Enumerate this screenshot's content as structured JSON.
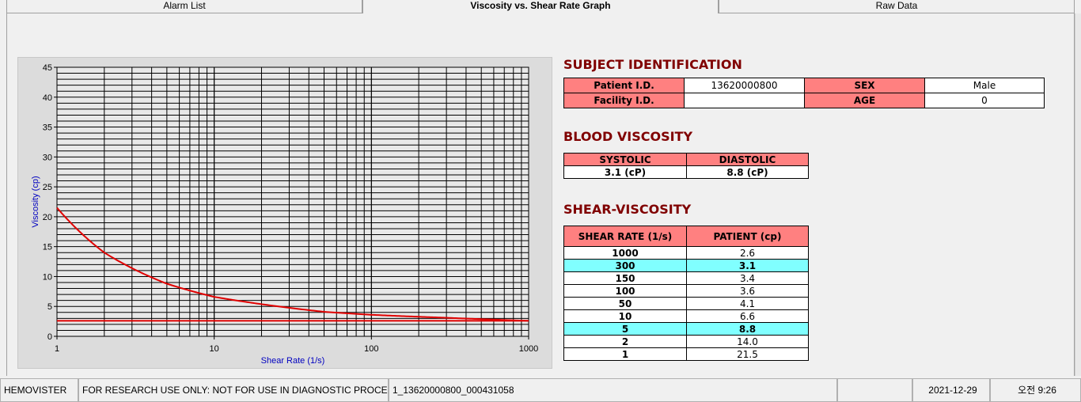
{
  "tabs": [
    {
      "label": "Alarm List"
    },
    {
      "label": "Viscosity vs. Shear Rate Graph"
    },
    {
      "label": "Raw Data"
    }
  ],
  "subject": {
    "title": "SUBJECT IDENTIFICATION",
    "patient_id_label": "Patient I.D.",
    "patient_id": "13620000800",
    "sex_label": "SEX",
    "sex": "Male",
    "facility_id_label": "Facility I.D.",
    "facility_id": "",
    "age_label": "AGE",
    "age": "0"
  },
  "blood": {
    "title": "BLOOD VISCOSITY",
    "systolic_label": "SYSTOLIC",
    "diastolic_label": "DIASTOLIC",
    "systolic": "3.1 (cP)",
    "diastolic": "8.8 (cP)"
  },
  "shear": {
    "title": "SHEAR-VISCOSITY",
    "col1": "SHEAR RATE (1/s)",
    "col2": "PATIENT (cp)",
    "rows": [
      {
        "rate": "1000",
        "val": "2.6",
        "hl": false
      },
      {
        "rate": "300",
        "val": "3.1",
        "hl": true
      },
      {
        "rate": "150",
        "val": "3.4",
        "hl": false
      },
      {
        "rate": "100",
        "val": "3.6",
        "hl": false
      },
      {
        "rate": "50",
        "val": "4.1",
        "hl": false
      },
      {
        "rate": "10",
        "val": "6.6",
        "hl": false
      },
      {
        "rate": "5",
        "val": "8.8",
        "hl": true
      },
      {
        "rate": "2",
        "val": "14.0",
        "hl": false
      },
      {
        "rate": "1",
        "val": "21.5",
        "hl": false
      }
    ]
  },
  "chart_data": {
    "type": "line",
    "xlabel": "Shear Rate (1/s)",
    "ylabel": "Viscosity (cp)",
    "xscale": "log",
    "xlim": [
      1,
      1000
    ],
    "ylim": [
      0,
      45
    ],
    "grid": true,
    "xticks": [
      "1",
      "10",
      "100",
      "1000"
    ],
    "yticks": [
      "0",
      "5",
      "10",
      "15",
      "20",
      "25",
      "30",
      "35",
      "40",
      "45"
    ],
    "series": [
      {
        "x": [
          1,
          2,
          5,
          10,
          50,
          100,
          150,
          300,
          1000
        ],
        "y": [
          21.5,
          14.0,
          8.8,
          6.6,
          4.1,
          3.6,
          3.4,
          3.1,
          2.6
        ],
        "color": "#e00000"
      }
    ],
    "hline": {
      "y": 2.6,
      "color": "#e00000"
    }
  },
  "status": {
    "app": "HEMOVISTER",
    "notice": "FOR RESEARCH USE ONLY: NOT FOR USE IN DIAGNOSTIC PROCEDURES",
    "file": "1_13620000800_000431058",
    "blank": "",
    "date": "2021-12-29",
    "time": "오전 9:26"
  }
}
